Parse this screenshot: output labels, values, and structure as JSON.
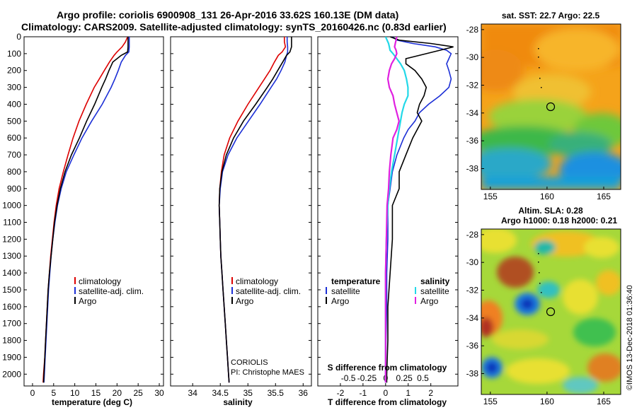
{
  "header": {
    "line1": "Argo profile: coriolis 6900908_131 26-Apr-2016 33.62S 160.13E (DM data)",
    "line2": "Climatology: CARS2009. Satellite-adjusted climatology: synTS_20160426.nc (0.83d earlier)"
  },
  "colors": {
    "climatology": "#dd0000",
    "satellite": "#1c2fd6",
    "argo": "#000000",
    "sat_salinity": "#22d8e8",
    "argo_salinity": "#e020e0"
  },
  "chart_data": [
    {
      "type": "line",
      "name": "temperature",
      "xlabel": "temperature (deg C)",
      "ylabel": "",
      "xlim": [
        -2,
        31
      ],
      "ylim": [
        2070,
        0
      ],
      "xticks": [
        0,
        5,
        10,
        15,
        20,
        25,
        30
      ],
      "yticks": [
        0,
        100,
        200,
        300,
        400,
        500,
        600,
        700,
        800,
        900,
        1000,
        1100,
        1200,
        1300,
        1400,
        1500,
        1600,
        1700,
        1800,
        1900,
        2000
      ],
      "depth": [
        0,
        30,
        60,
        90,
        110,
        150,
        200,
        250,
        300,
        400,
        500,
        600,
        700,
        800,
        900,
        1000,
        1100,
        1200,
        1300,
        1400,
        1500,
        1600,
        1700,
        1800,
        1900,
        2000,
        2050
      ],
      "series": [
        {
          "name": "climatology",
          "values": [
            22.5,
            22.0,
            21.2,
            20.0,
            19.3,
            18.2,
            17.0,
            15.8,
            14.6,
            12.7,
            11.0,
            9.6,
            8.4,
            7.3,
            6.3,
            5.6,
            5.1,
            4.7,
            4.3,
            4.0,
            3.7,
            3.5,
            3.3,
            3.1,
            2.9,
            2.6,
            2.5
          ]
        },
        {
          "name": "satellite-adj. clim.",
          "values": [
            22.9,
            22.9,
            22.9,
            22.8,
            22.0,
            21.0,
            20.3,
            19.5,
            18.6,
            16.5,
            14.0,
            11.7,
            9.8,
            8.0,
            6.8,
            5.9,
            5.3,
            4.8,
            4.4,
            4.1,
            3.8,
            3.6,
            3.4,
            3.2,
            3.0,
            2.8,
            2.7
          ]
        },
        {
          "name": "Argo",
          "values": [
            22.6,
            22.6,
            22.6,
            22.5,
            21.0,
            19.0,
            18.1,
            17.3,
            16.4,
            14.7,
            12.8,
            11.1,
            9.2,
            7.7,
            6.6,
            5.8,
            5.2,
            4.8,
            4.4,
            4.0,
            3.7,
            3.5,
            3.3,
            3.1,
            2.9,
            2.7,
            2.6
          ]
        }
      ],
      "legend": [
        "climatology",
        "satellite-adj. clim.",
        "Argo"
      ]
    },
    {
      "type": "line",
      "name": "salinity",
      "xlabel": "salinity",
      "xlim": [
        33.6,
        36.15
      ],
      "ylim": [
        2070,
        0
      ],
      "xticks": [
        34,
        34.5,
        35,
        35.5,
        36
      ],
      "depth": [
        0,
        30,
        60,
        90,
        110,
        150,
        200,
        250,
        300,
        400,
        500,
        600,
        700,
        800,
        900,
        1000,
        1100,
        1200,
        1300,
        1400,
        1500,
        1600,
        1700,
        1800,
        1900,
        2000,
        2050
      ],
      "series": [
        {
          "name": "climatology",
          "values": [
            35.66,
            35.66,
            35.68,
            35.62,
            35.55,
            35.48,
            35.4,
            35.3,
            35.2,
            35.0,
            34.82,
            34.67,
            34.57,
            34.52,
            34.49,
            34.48,
            34.49,
            34.5,
            34.51,
            34.53,
            34.55,
            34.57,
            34.59,
            34.61,
            34.63,
            34.65,
            34.66
          ]
        },
        {
          "name": "satellite-adj. clim.",
          "values": [
            35.71,
            35.71,
            35.72,
            35.72,
            35.7,
            35.67,
            35.6,
            35.52,
            35.42,
            35.22,
            35.01,
            34.8,
            34.64,
            34.54,
            34.5,
            34.48,
            34.49,
            34.5,
            34.51,
            34.53,
            34.55,
            34.57,
            34.59,
            34.61,
            34.63,
            34.65,
            34.66
          ]
        },
        {
          "name": "Argo",
          "values": [
            35.79,
            35.79,
            35.79,
            35.76,
            35.7,
            35.63,
            35.54,
            35.45,
            35.35,
            35.14,
            34.92,
            34.74,
            34.61,
            34.53,
            34.49,
            34.48,
            34.49,
            34.5,
            34.51,
            34.53,
            34.55,
            34.57,
            34.59,
            34.61,
            34.63,
            34.65,
            34.66
          ]
        }
      ],
      "legend": [
        "climatology",
        "satellite-adj. clim.",
        "Argo"
      ],
      "annotations": [
        "CORIOLIS",
        "PI: Christophe MAES"
      ]
    },
    {
      "type": "line",
      "name": "difference",
      "xlabel": "T difference from climatology",
      "xlabel_top": "S difference from climatology",
      "xlim": [
        -3,
        3.2
      ],
      "ylim": [
        2070,
        0
      ],
      "xticks": [
        -2,
        -1,
        0,
        1,
        2
      ],
      "xticks_top": [
        -0.5,
        -0.25,
        0,
        0.25,
        0.5
      ],
      "depth": [
        0,
        20,
        40,
        60,
        80,
        100,
        130,
        160,
        200,
        250,
        300,
        350,
        400,
        450,
        500,
        550,
        600,
        700,
        800,
        900,
        1000,
        1200,
        1400,
        1600,
        1800,
        2000,
        2050
      ],
      "series": [
        {
          "name": "temperature satellite",
          "values": [
            0.3,
            0.5,
            1.2,
            2.2,
            2.7,
            2.9,
            2.8,
            2.7,
            2.8,
            2.9,
            2.8,
            2.4,
            1.9,
            1.5,
            1.3,
            1.0,
            0.8,
            0.5,
            0.3,
            0.2,
            0.1,
            0.1,
            0.05,
            0.05,
            0.02,
            0.01,
            0.0
          ]
        },
        {
          "name": "temperature Argo",
          "values": [
            0.2,
            0.6,
            2.0,
            3.0,
            2.4,
            1.8,
            0.9,
            0.9,
            1.3,
            1.6,
            1.8,
            1.7,
            1.5,
            1.4,
            1.6,
            1.4,
            1.2,
            0.9,
            0.6,
            0.6,
            0.3,
            0.3,
            0.2,
            0.1,
            0.1,
            0.05,
            0.05
          ]
        },
        {
          "name": "salinity satellite",
          "values": [
            0.0,
            0.02,
            0.04,
            0.05,
            0.06,
            0.1,
            0.15,
            0.2,
            0.25,
            0.28,
            0.3,
            0.3,
            0.25,
            0.22,
            0.2,
            0.18,
            0.16,
            0.12,
            0.08,
            0.05,
            0.03,
            0.01,
            0.0,
            0.0,
            0.0,
            0.0,
            0.0
          ]
        },
        {
          "name": "salinity Argo",
          "values": [
            0.15,
            0.14,
            0.13,
            0.12,
            0.14,
            0.15,
            0.12,
            0.08,
            0.05,
            0.03,
            0.05,
            0.1,
            0.12,
            0.15,
            0.18,
            0.15,
            0.1,
            0.07,
            0.05,
            0.04,
            0.02,
            0.01,
            0.0,
            0.0,
            0.0,
            0.0,
            0.0
          ]
        }
      ],
      "legend": [
        "temperature satellite",
        "temperature Argo",
        "salinity satellite",
        "salinity Argo"
      ],
      "legend_labels": {
        "temperature": "temperature",
        "salinity": "salinity",
        "satellite": "satellite",
        "argo": "Argo"
      }
    },
    {
      "type": "heatmap",
      "name": "sst-map",
      "title": "sat. SST: 22.7 Argo: 22.5",
      "xticks": [
        155,
        160,
        165
      ],
      "yticks": [
        -28,
        -30,
        -32,
        -34,
        -36,
        -38
      ],
      "marker": {
        "lon": 160.13,
        "lat": -33.62
      }
    },
    {
      "type": "heatmap",
      "name": "sla-map",
      "title": "Altim. SLA: 0.28",
      "subtitle": "Argo h1000: 0.18 h2000: 0.21",
      "xticks": [
        155,
        160,
        165
      ],
      "yticks": [
        -28,
        -30,
        -32,
        -34,
        -36,
        -38
      ],
      "marker": {
        "lon": 160.13,
        "lat": -33.62
      }
    }
  ],
  "credit": "©IMOS 13-Dec-2018 01:36:40"
}
